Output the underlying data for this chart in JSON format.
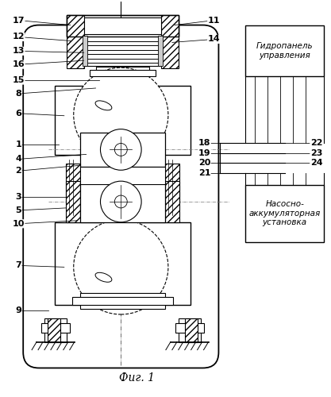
{
  "title": "Фиг. 1",
  "box1_label": "Гидропанель\nуправления",
  "box2_label": "Насосно-\nаккумуляторная\nустановка",
  "bg_color": "#ffffff",
  "line_color": "#000000"
}
